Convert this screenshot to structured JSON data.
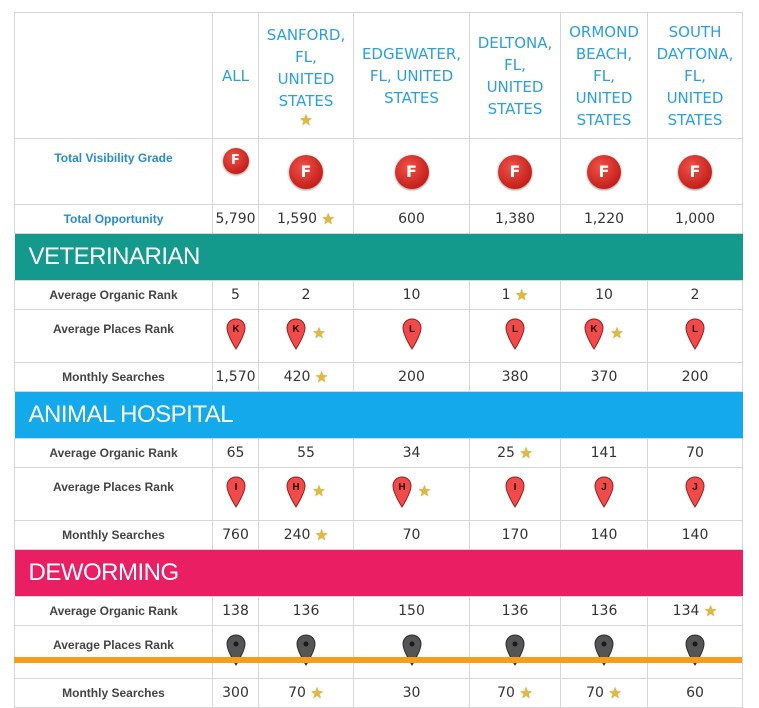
{
  "header": {
    "all": "ALL",
    "locations": [
      {
        "name": "SANFORD, FL, UNITED STATES",
        "lines": [
          "SANFORD,",
          "FL,",
          "UNITED",
          "STATES"
        ],
        "star": true
      },
      {
        "name": "EDGEWATER, FL, UNITED STATES",
        "lines": [
          "EDGEWATER,",
          "FL, UNITED",
          "STATES"
        ],
        "star": false
      },
      {
        "name": "DELTONA, FL, UNITED STATES",
        "lines": [
          "DELTONA,",
          "FL,",
          "UNITED",
          "STATES"
        ],
        "star": false
      },
      {
        "name": "ORMOND BEACH, FL, UNITED STATES",
        "lines": [
          "ORMOND",
          "BEACH,",
          "FL,",
          "UNITED",
          "STATES"
        ],
        "star": false
      },
      {
        "name": "SOUTH DAYTONA, FL, UNITED STATES",
        "lines": [
          "SOUTH",
          "DAYTONA,",
          "FL,",
          "UNITED",
          "STATES"
        ],
        "star": false
      }
    ]
  },
  "summary": {
    "grade_label": "Total Visibility Grade",
    "grades": [
      "F",
      "F",
      "F",
      "F",
      "F",
      "F"
    ],
    "opportunity_label": "Total Opportunity",
    "opportunity": [
      {
        "value": "5,790",
        "star": false
      },
      {
        "value": "1,590",
        "star": true
      },
      {
        "value": "600",
        "star": false
      },
      {
        "value": "1,380",
        "star": false
      },
      {
        "value": "1,220",
        "star": false
      },
      {
        "value": "1,000",
        "star": false
      }
    ]
  },
  "labels": {
    "organic": "Average Organic Rank",
    "places": "Average Places Rank",
    "searches": "Monthly Searches"
  },
  "colors": {
    "teal": "#139a8c",
    "sky": "#14a9ea",
    "pink": "#e91e63",
    "orange": "#f89c1c",
    "pin_red": "#ef4b4b",
    "pin_gray": "#555555",
    "link_blue": "#2a9fe0"
  },
  "sections": [
    {
      "title": "VETERINARIAN",
      "color": "teal",
      "organic": [
        {
          "value": "5",
          "star": false
        },
        {
          "value": "2",
          "star": false
        },
        {
          "value": "10",
          "star": false
        },
        {
          "value": "1",
          "star": true
        },
        {
          "value": "10",
          "star": false
        },
        {
          "value": "2",
          "star": false
        }
      ],
      "places": [
        {
          "letter": "K",
          "color": "red",
          "star": false
        },
        {
          "letter": "K",
          "color": "red",
          "star": true
        },
        {
          "letter": "L",
          "color": "red",
          "star": false
        },
        {
          "letter": "L",
          "color": "red",
          "star": false
        },
        {
          "letter": "K",
          "color": "red",
          "star": true
        },
        {
          "letter": "L",
          "color": "red",
          "star": false
        }
      ],
      "searches": [
        {
          "value": "1,570",
          "star": false
        },
        {
          "value": "420",
          "star": true
        },
        {
          "value": "200",
          "star": false
        },
        {
          "value": "380",
          "star": false
        },
        {
          "value": "370",
          "star": false
        },
        {
          "value": "200",
          "star": false
        }
      ]
    },
    {
      "title": "ANIMAL HOSPITAL",
      "color": "sky",
      "organic": [
        {
          "value": "65",
          "star": false
        },
        {
          "value": "55",
          "star": false
        },
        {
          "value": "34",
          "star": false
        },
        {
          "value": "25",
          "star": true
        },
        {
          "value": "141",
          "star": false
        },
        {
          "value": "70",
          "star": false
        }
      ],
      "places": [
        {
          "letter": "I",
          "color": "red",
          "star": false
        },
        {
          "letter": "H",
          "color": "red",
          "star": true
        },
        {
          "letter": "H",
          "color": "red",
          "star": true
        },
        {
          "letter": "I",
          "color": "red",
          "star": false
        },
        {
          "letter": "J",
          "color": "red",
          "star": false
        },
        {
          "letter": "J",
          "color": "red",
          "star": false
        }
      ],
      "searches": [
        {
          "value": "760",
          "star": false
        },
        {
          "value": "240",
          "star": true
        },
        {
          "value": "70",
          "star": false
        },
        {
          "value": "170",
          "star": false
        },
        {
          "value": "140",
          "star": false
        },
        {
          "value": "140",
          "star": false
        }
      ]
    },
    {
      "title": "DEWORMING",
      "color": "pink",
      "organic": [
        {
          "value": "138",
          "star": false
        },
        {
          "value": "136",
          "star": false
        },
        {
          "value": "150",
          "star": false
        },
        {
          "value": "136",
          "star": false
        },
        {
          "value": "136",
          "star": false
        },
        {
          "value": "134",
          "star": true
        }
      ],
      "places": [
        {
          "letter": "",
          "color": "gray",
          "star": false
        },
        {
          "letter": "",
          "color": "gray",
          "star": false
        },
        {
          "letter": "",
          "color": "gray",
          "star": false
        },
        {
          "letter": "",
          "color": "gray",
          "star": false
        },
        {
          "letter": "",
          "color": "gray",
          "star": false
        },
        {
          "letter": "",
          "color": "gray",
          "star": false
        }
      ],
      "searches": [
        {
          "value": "300",
          "star": false
        },
        {
          "value": "70",
          "star": true
        },
        {
          "value": "30",
          "star": false
        },
        {
          "value": "70",
          "star": true
        },
        {
          "value": "70",
          "star": true
        },
        {
          "value": "60",
          "star": false
        }
      ]
    }
  ]
}
